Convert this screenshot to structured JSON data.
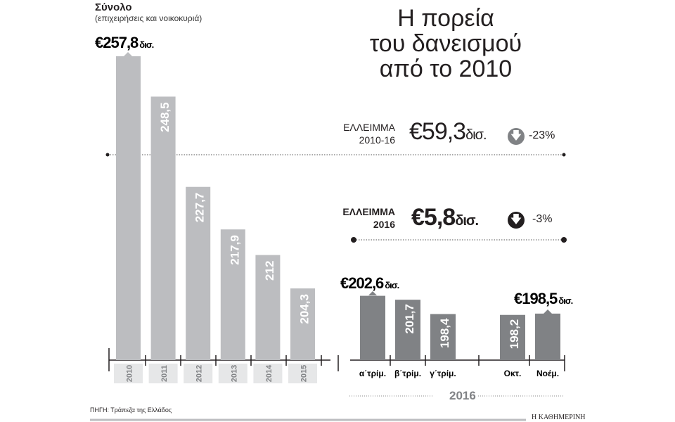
{
  "header": {
    "title": "Σύνολο",
    "subtitle": "(επιχειρήσεις και νοικοκυριά)",
    "main_title": [
      "Η πορεία",
      "του δανεισμού",
      "από το 2010"
    ]
  },
  "deficit_total": {
    "label1": "ΕΛΛΕΙΜΜΑ",
    "label2": "2010-16",
    "value": "€59,3",
    "unit": "δισ.",
    "pct": "-23%",
    "icon": "arrow-down-circle-icon"
  },
  "deficit_2016": {
    "label1": "ΕΛΛΕΙΜΜΑ",
    "label2": "2016",
    "value": "€5,8",
    "unit": "δισ.",
    "pct": "-3%",
    "icon": "arrow-down-circle-icon"
  },
  "chart_data": [
    {
      "type": "bar",
      "categories": [
        "2010",
        "2011",
        "2012",
        "2013",
        "2014",
        "2015"
      ],
      "values": [
        257.8,
        248.5,
        227.7,
        217.9,
        212,
        204.3
      ],
      "value_labels": [
        "257,8",
        "248,5",
        "227,7",
        "217,9",
        "212",
        "204,3"
      ],
      "highlight_label": {
        "value": "€257,8",
        "unit": "δισ."
      },
      "color": "#bcbdc0",
      "unit": "δισ. €"
    },
    {
      "type": "bar",
      "categories": [
        "α΄τρίμ.",
        "β΄τρίμ.",
        "γ΄τρίμ.",
        "Οκτ.",
        "Νοέμ."
      ],
      "values": [
        202.6,
        201.7,
        198.4,
        198.2,
        198.5
      ],
      "value_labels": [
        "202,6",
        "201,7",
        "198,4",
        "198,2",
        "198,5"
      ],
      "highlight_labels": [
        {
          "value": "€202,6",
          "unit": "δισ."
        },
        {
          "value": "€198,5",
          "unit": "δισ."
        }
      ],
      "xlabel": "2016",
      "color": "#808285"
    }
  ],
  "footer": {
    "source": "ΠΗΓΗ: Τράπεζα της Ελλάδος",
    "brand": "Η ΚΑΘΗΜΕΡΙΝΗ"
  }
}
